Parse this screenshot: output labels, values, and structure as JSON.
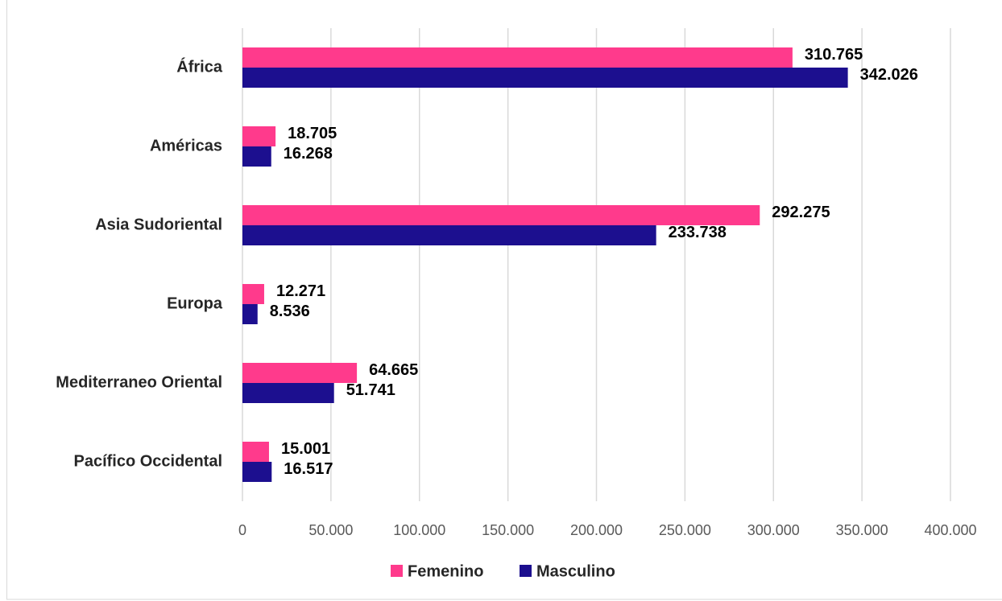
{
  "chart_data": {
    "type": "hbar",
    "categories": [
      "África",
      "Américas",
      "Asia Sudoriental",
      "Europa",
      "Mediterraneo Oriental",
      "Pacífico Occidental"
    ],
    "series": [
      {
        "name": "Femenino",
        "color": "#ff3a8c",
        "values": [
          310765,
          18705,
          292275,
          12271,
          64665,
          15001
        ],
        "value_labels": [
          "310.765",
          "18.705",
          "292.275",
          "12.271",
          "64.665",
          "15.001"
        ]
      },
      {
        "name": "Masculino",
        "color": "#1c0f8f",
        "values": [
          342026,
          16268,
          233738,
          8536,
          51741,
          16517
        ],
        "value_labels": [
          "342.026",
          "16.268",
          "233.738",
          "8.536",
          "51.741",
          "16.517"
        ]
      }
    ],
    "xlim": [
      0,
      400000
    ],
    "xticks": [
      0,
      {
        "value": 50000,
        "label": "50.000"
      },
      {
        "value": 100000,
        "label": "100.000"
      },
      {
        "value": 150000,
        "label": "150.000"
      },
      {
        "value": 200000,
        "label": "200.000"
      },
      {
        "value": 250000,
        "label": "250.000"
      },
      {
        "value": 300000,
        "label": "300.000"
      },
      {
        "value": 350000,
        "label": "350.000"
      },
      {
        "value": 400000,
        "label": "400.000"
      }
    ],
    "grid": true,
    "legend": "bottom"
  }
}
